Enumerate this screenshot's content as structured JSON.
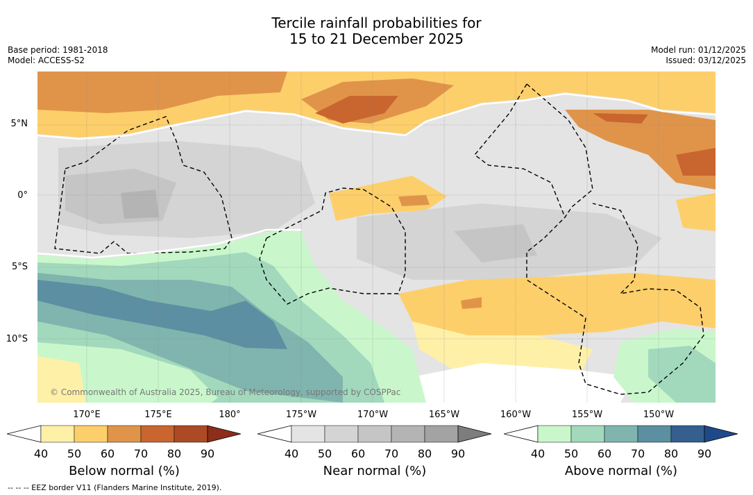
{
  "title_line1": "Tercile rainfall probabilities for",
  "title_line2": "15 to 21 December 2025",
  "base_period": "Base period: 1981-2018",
  "model": "Model: ACCESS-S2",
  "model_run": "Model run: 01/12/2025",
  "issued": "Issued: 03/12/2025",
  "lat_labels": [
    "5°N",
    "0°",
    "5°S",
    "10°S"
  ],
  "lon_labels": [
    "170°E",
    "175°E",
    "180°",
    "175°W",
    "170°W",
    "165°W",
    "160°W",
    "155°W",
    "150°W"
  ],
  "credit": "© Commonwealth of Australia 2025, Bureau of Meteorology, supported by COSPPac",
  "footnote": "--  --  -- EEZ border V11 (Flanders Marine Institute, 2019).",
  "colorbars": [
    {
      "title": "Below normal (%)",
      "ticks": [
        "40",
        "50",
        "60",
        "70",
        "80",
        "90"
      ],
      "colors": [
        "#fff0a8",
        "#fdcf6b",
        "#e0944a",
        "#c9652f",
        "#ad4a26"
      ],
      "extend": "#8c2e1a"
    },
    {
      "title": "Near normal (%)",
      "ticks": [
        "40",
        "50",
        "60",
        "70",
        "80",
        "90"
      ],
      "colors": [
        "#e4e4e4",
        "#d4d4d4",
        "#c5c5c5",
        "#b4b4b4",
        "#a3a3a3"
      ],
      "extend": "#7d7d7d"
    },
    {
      "title": "Above normal (%)",
      "ticks": [
        "40",
        "50",
        "60",
        "70",
        "80",
        "90"
      ],
      "colors": [
        "#c9f7cb",
        "#a2d9bd",
        "#7fb5ae",
        "#5b8fa1",
        "#345f8e"
      ],
      "extend": "#1f4a8a"
    }
  ]
}
